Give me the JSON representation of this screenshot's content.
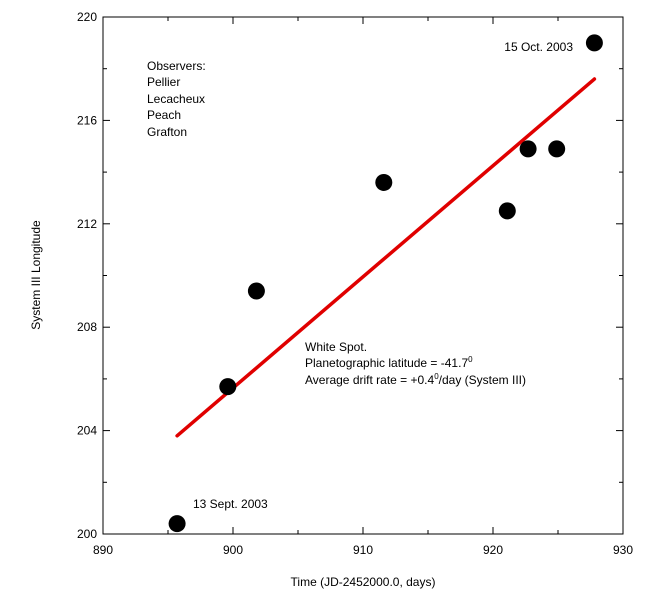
{
  "chart_data": {
    "type": "scatter",
    "title": "",
    "xlabel": "Time (JD-2452000.0, days)",
    "ylabel": "System III Longitude",
    "xlim": [
      890,
      930
    ],
    "ylim": [
      200,
      220
    ],
    "xticks": [
      890,
      900,
      910,
      920,
      930
    ],
    "yticks": [
      200,
      204,
      208,
      212,
      216,
      220
    ],
    "grid": false,
    "series": [
      {
        "points": [
          {
            "x": 895.7,
            "y": 200.4
          },
          {
            "x": 899.6,
            "y": 205.7
          },
          {
            "x": 901.8,
            "y": 209.4
          },
          {
            "x": 911.6,
            "y": 213.6
          },
          {
            "x": 921.1,
            "y": 212.5
          },
          {
            "x": 922.7,
            "y": 214.9
          },
          {
            "x": 924.9,
            "y": 214.9
          },
          {
            "x": 927.8,
            "y": 219.0
          }
        ]
      }
    ],
    "fit_line": {
      "color": "#e00000",
      "points": [
        {
          "x": 895.7,
          "y": 203.8
        },
        {
          "x": 927.8,
          "y": 217.6
        }
      ]
    },
    "annotations": {
      "observers": [
        "Observers:",
        "Pellier",
        "Lecacheux",
        "Peach",
        "Grafton"
      ],
      "end_date": "15 Oct. 2003",
      "start_date": "13 Sept. 2003",
      "feature": "White Spot.",
      "latitude_text": "Planetographic latitude = -41.7",
      "latitude_unit": "0",
      "drift_prefix": "Average drift rate = +0.4",
      "drift_unit": "0",
      "drift_suffix": "/day (System III)"
    }
  }
}
